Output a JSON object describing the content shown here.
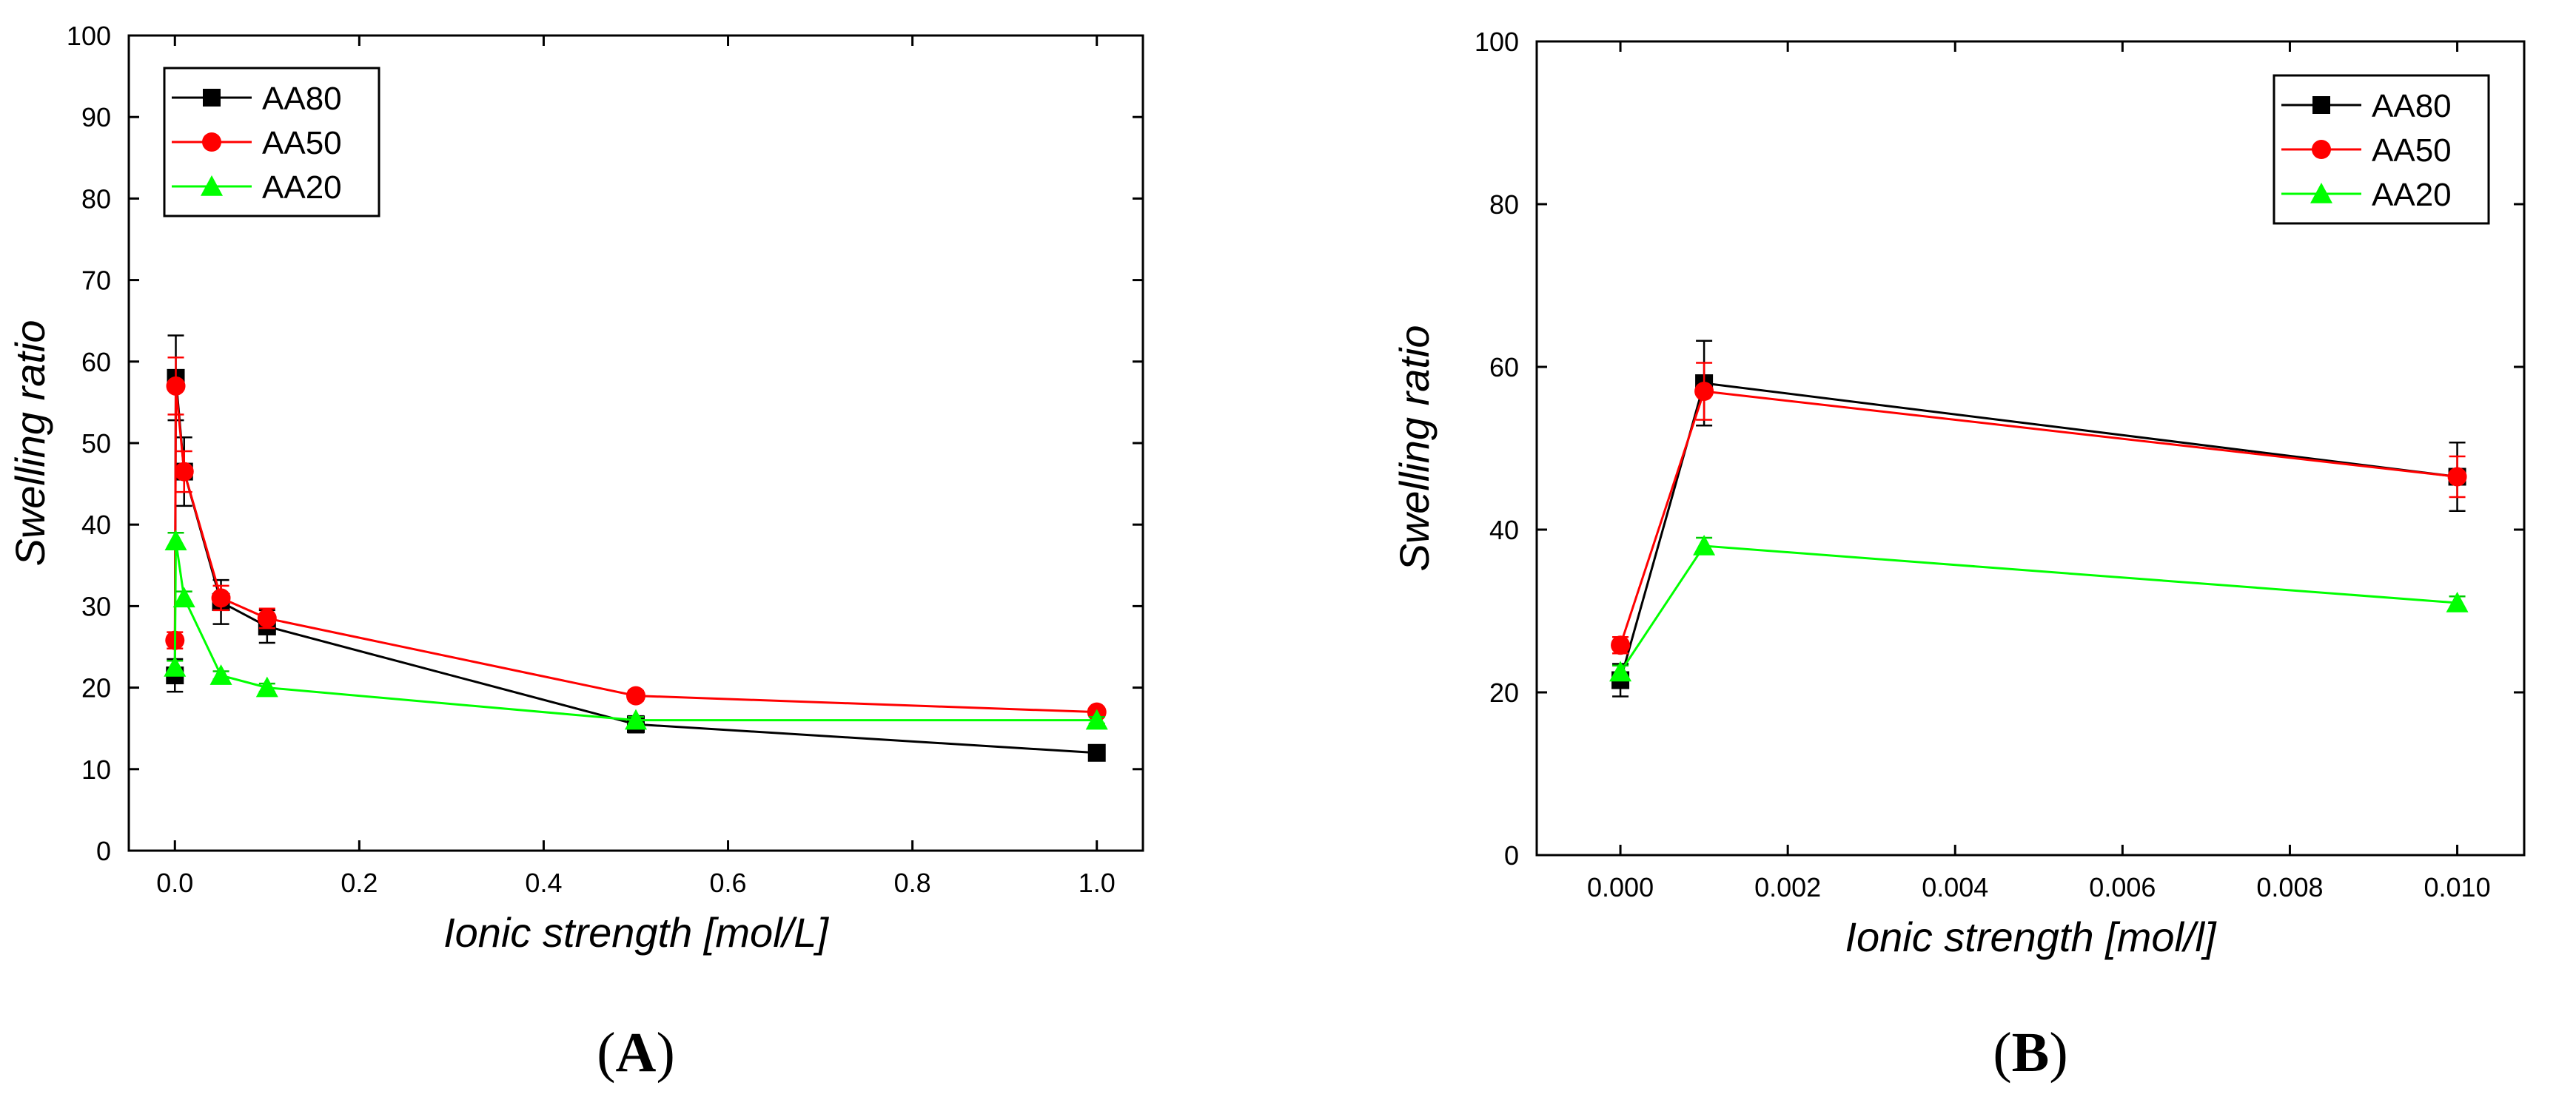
{
  "chart_data": [
    {
      "type": "line",
      "panel_label": "(A)",
      "panel_letter": "A",
      "xlabel": "Ionic strength [mol/L]",
      "ylabel": "Swelling ratio",
      "xlim": [
        -0.05,
        1.05
      ],
      "ylim": [
        0,
        100
      ],
      "xticks": [
        0.0,
        0.2,
        0.4,
        0.6,
        0.8,
        1.0
      ],
      "xtick_labels": [
        "0.0",
        "0.2",
        "0.4",
        "0.6",
        "0.8",
        "1.0"
      ],
      "yticks": [
        0,
        10,
        20,
        30,
        40,
        50,
        60,
        70,
        80,
        90,
        100
      ],
      "ytick_labels": [
        "0",
        "10",
        "20",
        "30",
        "40",
        "50",
        "60",
        "70",
        "80",
        "90",
        "100"
      ],
      "legend_position": "top-left",
      "series": [
        {
          "name": "AA80",
          "color": "#000000",
          "marker": "square",
          "x": [
            0,
            0.001,
            0.01,
            0.05,
            0.1,
            0.5,
            1.0
          ],
          "y": [
            21.5,
            58,
            46.5,
            30.5,
            27.5,
            15.5,
            12
          ],
          "err": [
            2,
            5.2,
            4.2,
            2.7,
            2,
            1,
            0.6
          ]
        },
        {
          "name": "AA50",
          "color": "#ff0000",
          "marker": "circle",
          "x": [
            0,
            0.001,
            0.01,
            0.05,
            0.1,
            0.5,
            1.0
          ],
          "y": [
            25.8,
            57,
            46.5,
            31,
            28.5,
            19,
            17
          ],
          "err": [
            1,
            3.5,
            2.5,
            1.5,
            1.2,
            0.6,
            0.5
          ]
        },
        {
          "name": "AA20",
          "color": "#00ff00",
          "marker": "triangle",
          "x": [
            0,
            0.001,
            0.01,
            0.05,
            0.1,
            0.5,
            1.0
          ],
          "y": [
            22.5,
            38,
            31,
            21.5,
            20,
            16,
            16
          ],
          "err": [
            0.8,
            1,
            0.8,
            0.5,
            0.5,
            0.4,
            0.4
          ]
        }
      ]
    },
    {
      "type": "line",
      "panel_label": "(B)",
      "panel_letter": "B",
      "xlabel": "Ionic strength [mol/l]",
      "ylabel": "Swelling ratio",
      "xlim": [
        -0.001,
        0.0108
      ],
      "ylim": [
        0,
        100
      ],
      "xticks": [
        0.0,
        0.002,
        0.004,
        0.006,
        0.008,
        0.01
      ],
      "xtick_labels": [
        "0.000",
        "0.002",
        "0.004",
        "0.006",
        "0.008",
        "0.010"
      ],
      "yticks": [
        0,
        20,
        40,
        60,
        80,
        100
      ],
      "ytick_labels": [
        "0",
        "20",
        "40",
        "60",
        "80",
        "100"
      ],
      "legend_position": "top-right",
      "series": [
        {
          "name": "AA80",
          "color": "#000000",
          "marker": "square",
          "x": [
            0,
            0.001,
            0.01
          ],
          "y": [
            21.5,
            58,
            46.5
          ],
          "err": [
            2,
            5.2,
            4.2
          ]
        },
        {
          "name": "AA50",
          "color": "#ff0000",
          "marker": "circle",
          "x": [
            0,
            0.001,
            0.01
          ],
          "y": [
            25.8,
            57,
            46.5
          ],
          "err": [
            1,
            3.5,
            2.5
          ]
        },
        {
          "name": "AA20",
          "color": "#00ff00",
          "marker": "triangle",
          "x": [
            0,
            0.001,
            0.01
          ],
          "y": [
            22.5,
            38,
            31
          ],
          "err": [
            0.8,
            1,
            0.8
          ]
        }
      ]
    }
  ]
}
